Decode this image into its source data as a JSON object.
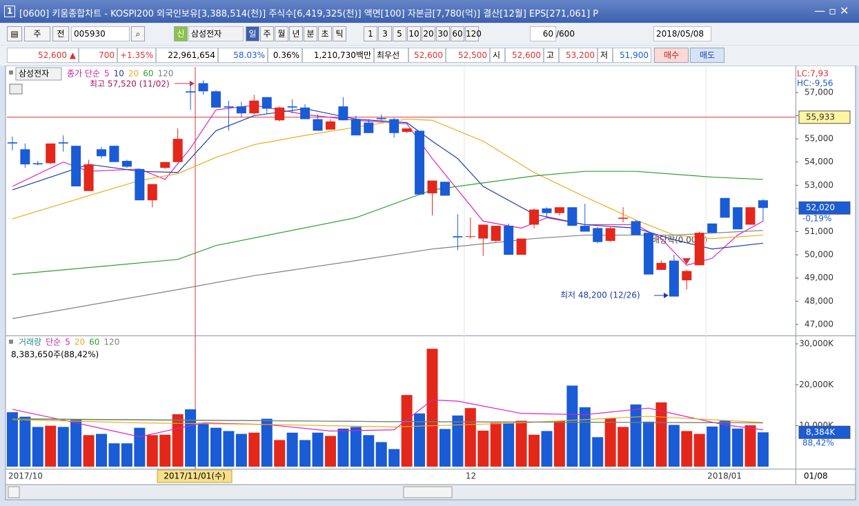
{
  "window": {
    "number": "1",
    "title": "[0600] 키움종합차트 - KOSPI200 외국인보유[3,388,514(천)] 주식수[6,419,325(천)] 액면[100] 자본금[7,780(억)] 결산[12월] EPS[271,061] P",
    "end_date": "01/08",
    "crosshair_label": "2017/11/01(수)"
  },
  "toolbar": {
    "market": "주",
    "prev": "전",
    "code": "005930",
    "shin": "신",
    "name": "삼성전자",
    "periods": [
      "일",
      "주",
      "월",
      "년",
      "분",
      "초",
      "틱"
    ],
    "intervals": [
      "1",
      "3",
      "5",
      "10",
      "20",
      "30",
      "60",
      "120"
    ],
    "count": "60",
    "count_max": "/600",
    "date": "2018/05/08"
  },
  "quote": {
    "price": "52,600 ▲",
    "change": "700",
    "rate": "+1.35%",
    "volume": "22,961,654",
    "ratio": "58.03%",
    "turnover": "0.36%",
    "amount": "1,210,730백만",
    "best": "최우선",
    "ask": "52,600",
    "bid": "52,500",
    "open_label": "시",
    "open": "52,600",
    "high_label": "고",
    "high": "53,200",
    "low_label": "저",
    "low": "51,900",
    "buy": "매수",
    "sell": "매도"
  },
  "chart_data": [
    {
      "type": "candlestick",
      "name": "삼성전자",
      "legend_label": "종가 단순",
      "lc": "LC:7,93",
      "hc": "HC:-9,56",
      "high_note": "최고 57,520 (11/02)",
      "low_note": "최저 48,200 (12/26)",
      "dividend_note": "배당락(0.00%)",
      "up_color": "#e3271b",
      "down_color": "#1a5bd6",
      "categories": [
        "2017/10",
        null,
        null,
        null,
        null,
        null,
        null,
        null,
        null,
        null,
        null,
        null,
        null,
        null,
        null,
        null,
        null,
        null,
        null,
        null,
        null,
        null,
        null,
        null,
        null,
        null,
        null,
        null,
        null,
        null,
        null,
        null,
        null,
        null,
        null,
        null,
        "12",
        null,
        null,
        null,
        null,
        null,
        null,
        null,
        null,
        null,
        null,
        null,
        null,
        null,
        null,
        null,
        null,
        null,
        null,
        "2018/01",
        null,
        null,
        null,
        null
      ],
      "open": [
        54850,
        54550,
        53950,
        53950,
        54850,
        54700,
        52750,
        54550,
        54700,
        54050,
        53700,
        52350,
        53750,
        54000,
        57050,
        57400,
        57050,
        56400,
        56400,
        56100,
        56800,
        55800,
        56400,
        56350,
        55850,
        55400,
        56400,
        55850,
        55700,
        55900,
        55850,
        55300,
        55350,
        52650,
        53150,
        50800,
        50800,
        50700,
        50600,
        51250,
        50000,
        51300,
        52000,
        51800,
        52050,
        51250,
        51150,
        50600,
        51550,
        51450,
        50950,
        49350,
        49750,
        48900,
        49550,
        51350,
        52450,
        52050,
        51300,
        52350
      ],
      "high": [
        55100,
        54800,
        54050,
        54800,
        55150,
        54700,
        54100,
        54650,
        54700,
        54100,
        53700,
        53050,
        54000,
        55450,
        57450,
        57520,
        57100,
        56650,
        56600,
        56900,
        56800,
        56400,
        56700,
        56500,
        56050,
        55850,
        56800,
        56000,
        55850,
        56050,
        55900,
        55450,
        55350,
        53200,
        53150,
        51750,
        51600,
        51300,
        51250,
        51350,
        50700,
        52000,
        52050,
        52050,
        52050,
        52200,
        51200,
        51200,
        52050,
        51500,
        50950,
        49750,
        50000,
        49350,
        51000,
        51350,
        52450,
        52050,
        52050,
        52400
      ],
      "low": [
        54500,
        53750,
        53850,
        53900,
        54450,
        52950,
        52750,
        54150,
        54000,
        53750,
        52350,
        52050,
        53700,
        54000,
        56250,
        56900,
        56350,
        55350,
        55950,
        56050,
        56100,
        55750,
        56100,
        55850,
        55350,
        55400,
        55800,
        55150,
        55250,
        55750,
        55050,
        55250,
        52600,
        51700,
        52550,
        50200,
        50700,
        49950,
        50550,
        50000,
        50000,
        51150,
        51600,
        51700,
        51250,
        51000,
        50500,
        50550,
        51400,
        50850,
        49150,
        49350,
        48200,
        48500,
        49550,
        50950,
        51600,
        51100,
        51300,
        51450
      ],
      "close": [
        54800,
        53900,
        53900,
        54800,
        54800,
        52950,
        53900,
        54250,
        54000,
        53800,
        52350,
        53050,
        54000,
        55000,
        57000,
        57050,
        56350,
        56350,
        56100,
        56650,
        56300,
        56350,
        56350,
        55850,
        55350,
        55750,
        55800,
        55150,
        55250,
        55850,
        55250,
        55450,
        52600,
        53200,
        52550,
        50750,
        50800,
        51300,
        51250,
        50000,
        50700,
        51950,
        51800,
        52050,
        51250,
        51000,
        50550,
        51150,
        51600,
        50850,
        49150,
        49650,
        48200,
        49300,
        50950,
        50950,
        51600,
        51100,
        52050,
        52020
      ],
      "series": [
        {
          "name": "5",
          "color": "#e020c0",
          "x": [
            0,
            4,
            6,
            10,
            12,
            14,
            16,
            19,
            23,
            27,
            31,
            33,
            35,
            37,
            40,
            42,
            45,
            49,
            51,
            53,
            55,
            57,
            59
          ],
          "values": [
            52950,
            54000,
            53600,
            53700,
            53250,
            54600,
            56250,
            56450,
            56050,
            55800,
            55650,
            54150,
            52800,
            51450,
            51150,
            51600,
            51300,
            51300,
            50700,
            49550,
            49850,
            50850,
            51450
          ]
        },
        {
          "name": "10",
          "color": "#1f3ca8",
          "x": [
            0,
            6,
            10,
            13,
            16,
            19,
            23,
            27,
            31,
            33,
            35,
            37,
            41,
            45,
            49,
            52,
            55,
            59
          ],
          "values": [
            52800,
            53900,
            53600,
            53550,
            55350,
            56000,
            56300,
            55850,
            55700,
            54900,
            54150,
            52950,
            51750,
            51300,
            51150,
            50650,
            50250,
            50500
          ]
        },
        {
          "name": "20",
          "color": "#f0a818",
          "x": [
            0,
            6,
            10,
            13,
            16,
            19,
            23,
            27,
            31,
            33,
            37,
            41,
            45,
            49,
            52,
            55,
            59
          ],
          "values": [
            51550,
            52550,
            53200,
            53500,
            54200,
            54750,
            55150,
            55500,
            55850,
            55800,
            54900,
            53550,
            52500,
            51500,
            50850,
            50700,
            50850
          ]
        },
        {
          "name": "60",
          "color": "#2ca02c",
          "x": [
            0,
            13,
            16,
            27,
            33,
            41,
            45,
            49,
            55,
            59
          ],
          "values": [
            49150,
            49800,
            50400,
            51600,
            52800,
            53400,
            53600,
            53600,
            53350,
            53250
          ]
        },
        {
          "name": "120",
          "color": "#808080",
          "x": [
            0,
            13,
            19,
            27,
            33,
            41,
            45,
            52,
            59
          ],
          "values": [
            47250,
            48500,
            49100,
            49750,
            50250,
            50700,
            50850,
            50850,
            51050
          ]
        }
      ],
      "xlim": [
        -0.43,
        61.55
      ],
      "ylim": [
        46550,
        58100
      ],
      "yticks": [
        {
          "value": 47000,
          "label": "47,000"
        },
        {
          "value": 48000,
          "label": "48,000"
        },
        {
          "value": 49000,
          "label": "49,000"
        },
        {
          "value": 50000,
          "label": "50,000"
        },
        {
          "value": 51000,
          "label": "51,000"
        },
        {
          "value": 52000,
          "label": "52,000"
        },
        {
          "value": 53000,
          "label": "53,000"
        },
        {
          "value": 54000,
          "label": "54,000"
        },
        {
          "value": 55000,
          "label": "55,000"
        },
        {
          "value": 56000,
          "label": "56,000"
        },
        {
          "value": 57000,
          "label": "57,000"
        }
      ],
      "reference": {
        "value": 55933,
        "label": "55,933",
        "color": "#e03030"
      },
      "current": {
        "value": 52020,
        "label": "52,020"
      },
      "current_change": "-0,19%"
    },
    {
      "type": "bar",
      "legend_title": "거래량",
      "legend_label": "단순",
      "info": "8,383,650주(88,42%)",
      "up_color": "#e3271b",
      "down_color": "#1a5bd6",
      "values": [
        13300,
        12200,
        9700,
        10000,
        9700,
        11500,
        7700,
        8000,
        5700,
        5700,
        9500,
        7700,
        7800,
        12800,
        14000,
        10700,
        9500,
        8700,
        8000,
        8300,
        11700,
        6500,
        8300,
        6500,
        8300,
        7500,
        9300,
        9700,
        7700,
        6000,
        4300,
        17500,
        13000,
        28800,
        9200,
        12500,
        14300,
        8800,
        10700,
        10700,
        11200,
        7800,
        8700,
        11200,
        19800,
        14500,
        7200,
        11800,
        9700,
        15200,
        11000,
        15700,
        10200,
        8700,
        8000,
        9800,
        11200,
        9300,
        10100,
        8384
      ],
      "series": [
        {
          "name": "5",
          "color": "#e020c0",
          "x": [
            0,
            5,
            10,
            15,
            20,
            25,
            30,
            33,
            35,
            40,
            45,
            50,
            53,
            56,
            59
          ],
          "values": [
            14000,
            10700,
            7300,
            10700,
            10300,
            8700,
            9000,
            16300,
            16000,
            13000,
            12700,
            14300,
            12200,
            10200,
            9000
          ]
        },
        {
          "name": "20",
          "color": "#f0a818",
          "x": [
            0,
            10,
            20,
            30,
            40,
            50,
            59
          ],
          "values": [
            11500,
            10700,
            10300,
            9700,
            10700,
            12300,
            10800
          ]
        },
        {
          "name": "60",
          "color": "#2ca02c",
          "x": [
            0,
            30,
            59
          ],
          "values": [
            11700,
            11000,
            10700
          ]
        },
        {
          "name": "120",
          "color": "#808080",
          "x": [
            0,
            30,
            59
          ],
          "values": [
            11600,
            11000,
            10700
          ]
        }
      ],
      "xlim": [
        -0.43,
        61.55
      ],
      "ylim": [
        0,
        31700
      ],
      "yticks": [
        {
          "value": 10000,
          "label": "10,000K"
        },
        {
          "value": 20000,
          "label": "20,000K"
        },
        {
          "value": 30000,
          "label": "30,000K"
        }
      ],
      "current": {
        "value": 8384,
        "label": "8,384K"
      },
      "current_change": "88,42%"
    }
  ]
}
